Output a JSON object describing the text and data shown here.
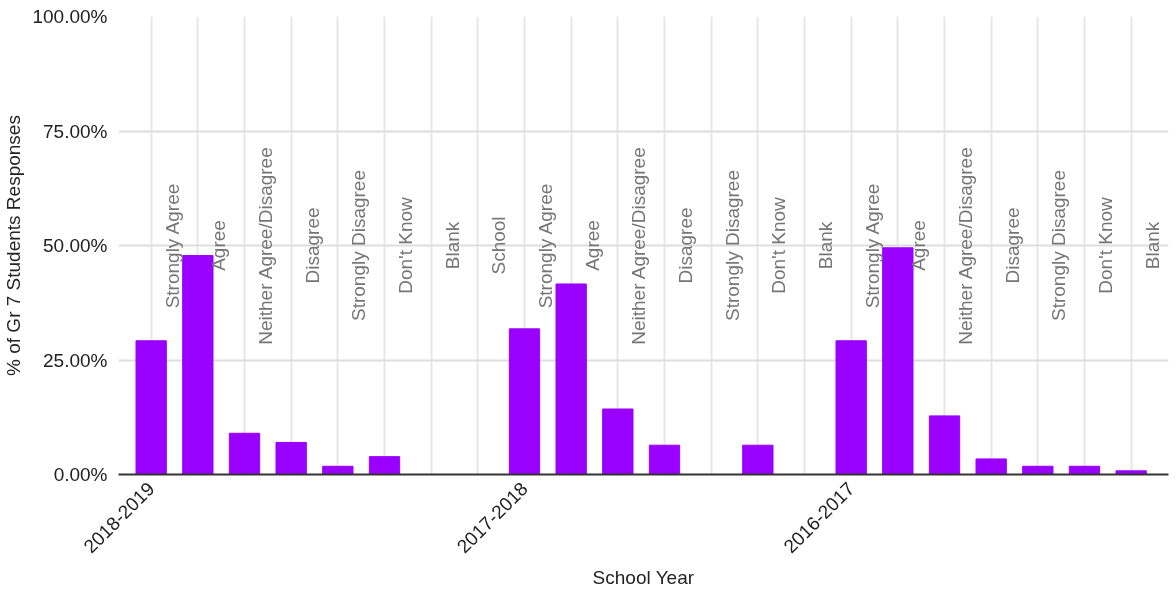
{
  "chart_data": {
    "type": "bar",
    "xlabel": "School Year",
    "ylabel": "% of Gr 7 Students Responses",
    "categories": [
      "2018-2019",
      null,
      null,
      null,
      null,
      null,
      null,
      null,
      "2017-2018",
      null,
      null,
      null,
      null,
      null,
      null,
      "2016-2017",
      null,
      null,
      null,
      null,
      null,
      null
    ],
    "values": [
      29.2,
      47.8,
      9.0,
      7.0,
      1.8,
      3.9,
      0,
      0,
      31.8,
      41.6,
      14.3,
      6.4,
      0,
      6.4,
      0,
      29.2,
      49.5,
      12.8,
      3.4,
      1.8,
      1.8,
      0.8
    ],
    "color": "#9900ff",
    "annotations": [
      "Strongly Agree",
      "Agree",
      "Neither Agree/Disagree",
      "Disagree",
      "Strongly Disagree",
      "Don't Know",
      "Blank",
      "School",
      "Strongly Agree",
      "Agree",
      "Neither Agree/Disagree",
      "Disagree",
      "Strongly Disagree",
      "Don't Know",
      "Blank",
      "Strongly Agree",
      "Agree",
      "Neither Agree/Disagree",
      "Disagree",
      "Strongly Disagree",
      "Don't Know",
      "Blank"
    ],
    "ylim": [
      0,
      100
    ],
    "yticks": [
      {
        "value": 0,
        "label": "0.00%"
      },
      {
        "value": 25,
        "label": "25.00%"
      },
      {
        "value": 50,
        "label": "50.00%"
      },
      {
        "value": 75,
        "label": "75.00%"
      },
      {
        "value": 100,
        "label": "100.00%"
      }
    ],
    "grid": true
  }
}
